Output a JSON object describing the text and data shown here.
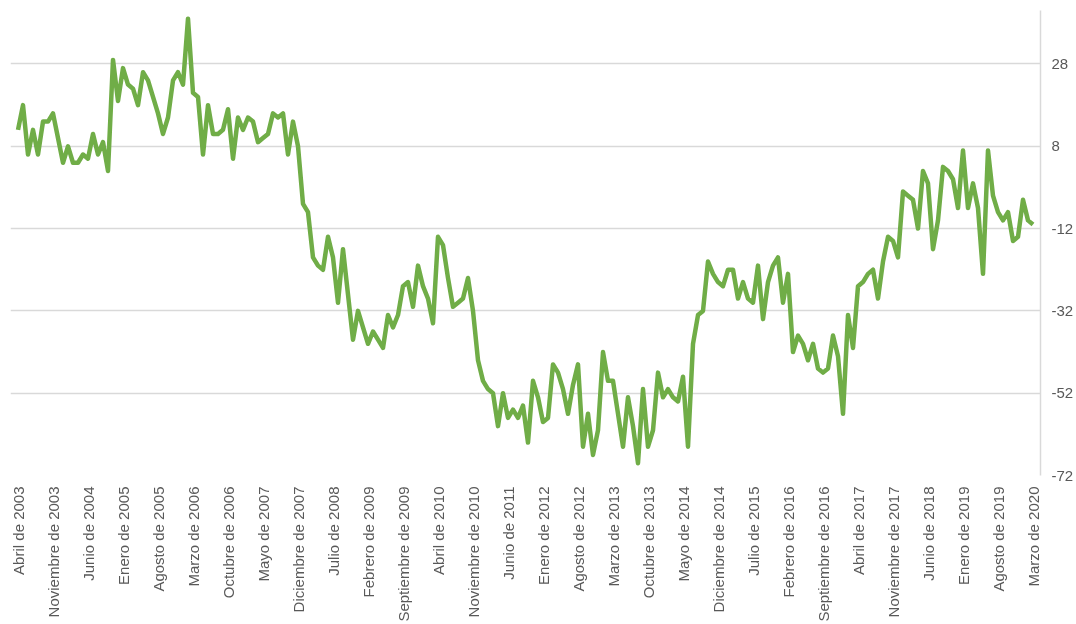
{
  "chart_data": {
    "type": "line",
    "categories": [
      "Abril de 2003",
      null,
      null,
      null,
      null,
      null,
      null,
      "Noviembre de 2003",
      null,
      null,
      null,
      null,
      null,
      null,
      "Junio de 2004",
      null,
      null,
      null,
      null,
      null,
      null,
      "Enero de 2005",
      null,
      null,
      null,
      null,
      null,
      null,
      "Agosto de 2005",
      null,
      null,
      null,
      null,
      null,
      null,
      "Marzo de 2006",
      null,
      null,
      null,
      null,
      null,
      null,
      "Octubre de 2006",
      null,
      null,
      null,
      null,
      null,
      null,
      "Mayo de 2007",
      null,
      null,
      null,
      null,
      null,
      null,
      "Diciembre de 2007",
      null,
      null,
      null,
      null,
      null,
      null,
      "Julio de 2008",
      null,
      null,
      null,
      null,
      null,
      null,
      "Febrero de 2009",
      null,
      null,
      null,
      null,
      null,
      null,
      "Septiembre de 2009",
      null,
      null,
      null,
      null,
      null,
      null,
      "Abril de 2010",
      null,
      null,
      null,
      null,
      null,
      null,
      "Noviembre de 2010",
      null,
      null,
      null,
      null,
      null,
      null,
      "Junio de 2011",
      null,
      null,
      null,
      null,
      null,
      null,
      "Enero de 2012",
      null,
      null,
      null,
      null,
      null,
      null,
      "Agosto de 2012",
      null,
      null,
      null,
      null,
      null,
      null,
      "Marzo de 2013",
      null,
      null,
      null,
      null,
      null,
      null,
      "Octubre de 2013",
      null,
      null,
      null,
      null,
      null,
      null,
      "Mayo de 2014",
      null,
      null,
      null,
      null,
      null,
      null,
      "Diciembre de 2014",
      null,
      null,
      null,
      null,
      null,
      null,
      "Julio de 2015",
      null,
      null,
      null,
      null,
      null,
      null,
      "Febrero de 2016",
      null,
      null,
      null,
      null,
      null,
      null,
      "Septiembre de 2016",
      null,
      null,
      null,
      null,
      null,
      null,
      "Abril de 2017",
      null,
      null,
      null,
      null,
      null,
      null,
      "Noviembre de 2017",
      null,
      null,
      null,
      null,
      null,
      null,
      "Junio de 2018",
      null,
      null,
      null,
      null,
      null,
      null,
      "Enero de 2019",
      null,
      null,
      null,
      null,
      null,
      null,
      "Agosto de 2019",
      null,
      null,
      null,
      null,
      null,
      null,
      "Marzo de 2020"
    ],
    "series": [
      {
        "color": "#70ad47",
        "values": [
          12,
          18,
          6,
          12,
          6,
          14,
          14,
          16,
          10,
          4,
          8,
          4,
          4,
          6,
          5,
          11,
          6,
          9,
          2,
          29,
          19,
          27,
          23,
          22,
          18,
          26,
          24,
          20,
          16,
          11,
          15,
          24,
          26,
          23,
          39,
          21,
          20,
          6,
          18,
          11,
          11,
          12,
          17,
          5,
          15,
          12,
          15,
          14,
          9,
          10,
          11,
          16,
          15,
          16,
          6,
          14,
          8,
          -6,
          -8,
          -19,
          -21,
          -22,
          -14,
          -19,
          -30,
          -17,
          -28,
          -39,
          -32,
          -36,
          -40,
          -37,
          -39,
          -41,
          -33,
          -36,
          -33,
          -26,
          -25,
          -31,
          -21,
          -26,
          -29,
          -35,
          -14,
          -16,
          -24,
          -31,
          -30,
          -29,
          -24,
          -32,
          -44,
          -49,
          -51,
          -52,
          -60,
          -52,
          -58,
          -56,
          -58,
          -55,
          -64,
          -49,
          -53,
          -59,
          -58,
          -45,
          -47,
          -51,
          -57,
          -50,
          -45,
          -65,
          -57,
          -67,
          -61,
          -42,
          -49,
          -49,
          -57,
          -65,
          -53,
          -60,
          -69,
          -51,
          -65,
          -61,
          -47,
          -53,
          -51,
          -53,
          -54,
          -48,
          -65,
          -40,
          -33,
          -32,
          -20,
          -23,
          -25,
          -26,
          -22,
          -22,
          -29,
          -25,
          -29,
          -30,
          -21,
          -34,
          -25,
          -21,
          -19,
          -30,
          -23,
          -42,
          -38,
          -40,
          -44,
          -40,
          -46,
          -47,
          -46,
          -38,
          -43,
          -57,
          -33,
          -41,
          -26,
          -25,
          -23,
          -22,
          -29,
          -20,
          -14,
          -15,
          -19,
          -3,
          -4,
          -5,
          -12,
          2,
          -1,
          -17,
          -10,
          3,
          2,
          0,
          -7,
          7,
          -7,
          -1,
          -7,
          -23,
          7,
          -4,
          -8,
          -10,
          -8,
          -15,
          -14,
          -5,
          -10,
          -11
        ]
      }
    ],
    "ylim": [
      -72,
      41
    ],
    "yticks": [
      28,
      8,
      -12,
      -32,
      -52,
      -72
    ],
    "grid": "y",
    "marker": "none",
    "line_style": "solid"
  }
}
